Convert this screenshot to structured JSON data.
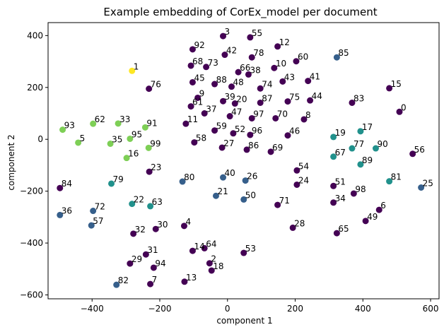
{
  "chart_data": {
    "type": "scatter",
    "title": "Example embedding of CorEx_model per document",
    "xlabel": "component 1",
    "ylabel": "component 2",
    "xlim": [
      -530,
      625
    ],
    "ylim": [
      -615,
      450
    ],
    "xticks": [
      -400,
      -200,
      0,
      200,
      400,
      600
    ],
    "yticks": [
      -600,
      -400,
      -200,
      0,
      200,
      400
    ],
    "grid": false,
    "legend": "none",
    "colormap": "viridis",
    "points": [
      {
        "label": "0",
        "x": 508,
        "y": 106,
        "c": 0.0
      },
      {
        "label": "1",
        "x": -282,
        "y": 264,
        "c": 1.0
      },
      {
        "label": "2",
        "x": -53,
        "y": -478,
        "c": 0.0
      },
      {
        "label": "3",
        "x": -13,
        "y": 398,
        "c": 0.0
      },
      {
        "label": "4",
        "x": -128,
        "y": -334,
        "c": 0.0
      },
      {
        "label": "5",
        "x": -441,
        "y": -13,
        "c": 0.8
      },
      {
        "label": "6",
        "x": 448,
        "y": -272,
        "c": 0.0
      },
      {
        "label": "7",
        "x": -228,
        "y": -558,
        "c": 0.0
      },
      {
        "label": "8",
        "x": 226,
        "y": 77,
        "c": 0.0
      },
      {
        "label": "9",
        "x": -88,
        "y": 160,
        "c": 0.0
      },
      {
        "label": "10",
        "x": 138,
        "y": 275,
        "c": 0.0
      },
      {
        "label": "11",
        "x": -123,
        "y": 60,
        "c": 0.0
      },
      {
        "label": "12",
        "x": 148,
        "y": 358,
        "c": 0.0
      },
      {
        "label": "13",
        "x": -127,
        "y": -549,
        "c": 0.0
      },
      {
        "label": "14",
        "x": -103,
        "y": -430,
        "c": 0.0
      },
      {
        "label": "15",
        "x": 478,
        "y": 197,
        "c": 0.0
      },
      {
        "label": "16",
        "x": -298,
        "y": -72,
        "c": 0.8
      },
      {
        "label": "17",
        "x": 393,
        "y": 31,
        "c": 0.5
      },
      {
        "label": "18",
        "x": -47,
        "y": -506,
        "c": 0.0
      },
      {
        "label": "19",
        "x": 313,
        "y": 9,
        "c": 0.5
      },
      {
        "label": "20",
        "x": 22,
        "y": 138,
        "c": 0.0
      },
      {
        "label": "21",
        "x": -34,
        "y": -218,
        "c": 0.3
      },
      {
        "label": "22",
        "x": -282,
        "y": -249,
        "c": 0.5
      },
      {
        "label": "23",
        "x": -231,
        "y": -125,
        "c": 0.0
      },
      {
        "label": "24",
        "x": 205,
        "y": -175,
        "c": 0.0
      },
      {
        "label": "25",
        "x": 572,
        "y": -186,
        "c": 0.3
      },
      {
        "label": "26",
        "x": 53,
        "y": -159,
        "c": 0.3
      },
      {
        "label": "27",
        "x": -16,
        "y": -32,
        "c": 0.0
      },
      {
        "label": "28",
        "x": 193,
        "y": -341,
        "c": 0.0
      },
      {
        "label": "29",
        "x": -288,
        "y": -479,
        "c": 0.0
      },
      {
        "label": "30",
        "x": -212,
        "y": -346,
        "c": 0.0
      },
      {
        "label": "31",
        "x": -241,
        "y": -444,
        "c": 0.0
      },
      {
        "label": "32",
        "x": -278,
        "y": -364,
        "c": 0.0
      },
      {
        "label": "33",
        "x": -323,
        "y": 61,
        "c": 0.8
      },
      {
        "label": "34",
        "x": 313,
        "y": -244,
        "c": 0.0
      },
      {
        "label": "35",
        "x": -346,
        "y": -17,
        "c": 0.8
      },
      {
        "label": "36",
        "x": -495,
        "y": -292,
        "c": 0.3
      },
      {
        "label": "37",
        "x": -68,
        "y": 100,
        "c": 0.0
      },
      {
        "label": "38",
        "x": 62,
        "y": 250,
        "c": 0.0
      },
      {
        "label": "39",
        "x": -13,
        "y": 147,
        "c": 0.0
      },
      {
        "label": "40",
        "x": -13,
        "y": -147,
        "c": 0.3
      },
      {
        "label": "41",
        "x": 238,
        "y": 225,
        "c": 0.0
      },
      {
        "label": "42",
        "x": -8,
        "y": 326,
        "c": 0.0
      },
      {
        "label": "43",
        "x": 163,
        "y": 223,
        "c": 0.0
      },
      {
        "label": "44",
        "x": 244,
        "y": 150,
        "c": 0.0
      },
      {
        "label": "45",
        "x": -103,
        "y": 220,
        "c": 0.0
      },
      {
        "label": "46",
        "x": 178,
        "y": 15,
        "c": 0.0
      },
      {
        "label": "47",
        "x": 7,
        "y": 89,
        "c": 0.0
      },
      {
        "label": "48",
        "x": 12,
        "y": 203,
        "c": 0.0
      },
      {
        "label": "49",
        "x": 408,
        "y": -315,
        "c": 0.0
      },
      {
        "label": "50",
        "x": 48,
        "y": -232,
        "c": 0.3
      },
      {
        "label": "51",
        "x": 313,
        "y": -180,
        "c": 0.0
      },
      {
        "label": "52",
        "x": 17,
        "y": 23,
        "c": 0.0
      },
      {
        "label": "53",
        "x": 48,
        "y": -438,
        "c": 0.0
      },
      {
        "label": "54",
        "x": 205,
        "y": -120,
        "c": 0.0
      },
      {
        "label": "55",
        "x": 67,
        "y": 393,
        "c": 0.0
      },
      {
        "label": "56",
        "x": 547,
        "y": -56,
        "c": 0.0
      },
      {
        "label": "57",
        "x": -402,
        "y": -332,
        "c": 0.3
      },
      {
        "label": "58",
        "x": -98,
        "y": -12,
        "c": 0.0
      },
      {
        "label": "59",
        "x": -38,
        "y": 34,
        "c": 0.0
      },
      {
        "label": "60",
        "x": 203,
        "y": 301,
        "c": 0.0
      },
      {
        "label": "61",
        "x": -108,
        "y": 127,
        "c": 0.0
      },
      {
        "label": "62",
        "x": -397,
        "y": 60,
        "c": 0.8
      },
      {
        "label": "63",
        "x": -228,
        "y": -258,
        "c": 0.5
      },
      {
        "label": "64",
        "x": -68,
        "y": -420,
        "c": 0.0
      },
      {
        "label": "65",
        "x": 323,
        "y": -362,
        "c": 0.0
      },
      {
        "label": "66",
        "x": 32,
        "y": 259,
        "c": 0.0
      },
      {
        "label": "67",
        "x": 313,
        "y": -67,
        "c": 0.5
      },
      {
        "label": "68",
        "x": -108,
        "y": 284,
        "c": 0.0
      },
      {
        "label": "69",
        "x": 128,
        "y": -48,
        "c": 0.0
      },
      {
        "label": "70",
        "x": 142,
        "y": 81,
        "c": 0.0
      },
      {
        "label": "71",
        "x": 148,
        "y": -253,
        "c": 0.0
      },
      {
        "label": "72",
        "x": -397,
        "y": -276,
        "c": 0.3
      },
      {
        "label": "73",
        "x": -63,
        "y": 279,
        "c": 0.0
      },
      {
        "label": "74",
        "x": 97,
        "y": 196,
        "c": 0.0
      },
      {
        "label": "75",
        "x": 178,
        "y": 146,
        "c": 0.0
      },
      {
        "label": "76",
        "x": -232,
        "y": 195,
        "c": 0.0
      },
      {
        "label": "77",
        "x": 368,
        "y": -35,
        "c": 0.5
      },
      {
        "label": "78",
        "x": 72,
        "y": 316,
        "c": 0.0
      },
      {
        "label": "79",
        "x": -343,
        "y": -171,
        "c": 0.5
      },
      {
        "label": "80",
        "x": -133,
        "y": -163,
        "c": 0.3
      },
      {
        "label": "81",
        "x": 478,
        "y": -162,
        "c": 0.5
      },
      {
        "label": "82",
        "x": -328,
        "y": -561,
        "c": 0.3
      },
      {
        "label": "83",
        "x": 368,
        "y": 141,
        "c": 0.0
      },
      {
        "label": "84",
        "x": -495,
        "y": -188,
        "c": 0.0
      },
      {
        "label": "85",
        "x": 323,
        "y": 316,
        "c": 0.3
      },
      {
        "label": "86",
        "x": 57,
        "y": -40,
        "c": 0.0
      },
      {
        "label": "87",
        "x": 97,
        "y": 141,
        "c": 0.0
      },
      {
        "label": "88",
        "x": -38,
        "y": 213,
        "c": 0.0
      },
      {
        "label": "89",
        "x": 393,
        "y": -97,
        "c": 0.5
      },
      {
        "label": "90",
        "x": 438,
        "y": -35,
        "c": 0.5
      },
      {
        "label": "91",
        "x": -243,
        "y": 46,
        "c": 0.8
      },
      {
        "label": "92",
        "x": -103,
        "y": 347,
        "c": 0.0
      },
      {
        "label": "93",
        "x": -487,
        "y": 37,
        "c": 0.8
      },
      {
        "label": "94",
        "x": -218,
        "y": -495,
        "c": 0.0
      },
      {
        "label": "95",
        "x": -288,
        "y": 2,
        "c": 0.8
      },
      {
        "label": "96",
        "x": 67,
        "y": 17,
        "c": 0.0
      },
      {
        "label": "97",
        "x": 72,
        "y": 81,
        "c": 0.0
      },
      {
        "label": "98",
        "x": 373,
        "y": -209,
        "c": 0.0
      },
      {
        "label": "99",
        "x": -233,
        "y": -33,
        "c": 0.8
      }
    ]
  }
}
